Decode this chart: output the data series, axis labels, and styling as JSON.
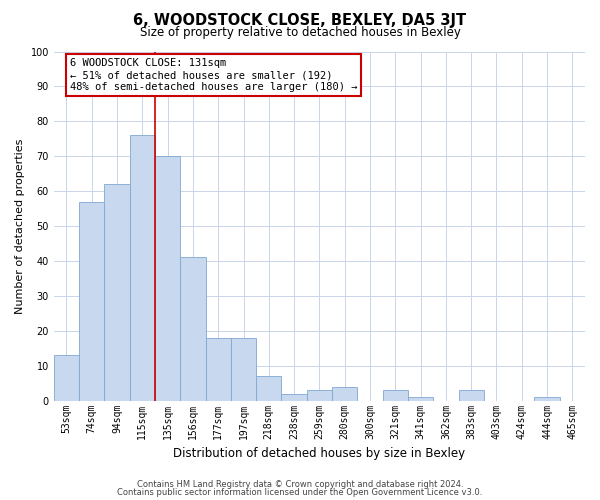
{
  "title": "6, WOODSTOCK CLOSE, BEXLEY, DA5 3JT",
  "subtitle": "Size of property relative to detached houses in Bexley",
  "xlabel": "Distribution of detached houses by size in Bexley",
  "ylabel": "Number of detached properties",
  "bar_labels": [
    "53sqm",
    "74sqm",
    "94sqm",
    "115sqm",
    "135sqm",
    "156sqm",
    "177sqm",
    "197sqm",
    "218sqm",
    "238sqm",
    "259sqm",
    "280sqm",
    "300sqm",
    "321sqm",
    "341sqm",
    "362sqm",
    "383sqm",
    "403sqm",
    "424sqm",
    "444sqm",
    "465sqm"
  ],
  "bar_values": [
    13,
    57,
    62,
    76,
    70,
    41,
    18,
    18,
    7,
    2,
    3,
    4,
    0,
    3,
    1,
    0,
    3,
    0,
    0,
    1,
    0
  ],
  "bar_color": "#c8d8ef",
  "bar_edge_color": "#7fa8d0",
  "vline_x": 3.5,
  "vline_color": "#cc0000",
  "annotation_title": "6 WOODSTOCK CLOSE: 131sqm",
  "annotation_line1": "← 51% of detached houses are smaller (192)",
  "annotation_line2": "48% of semi-detached houses are larger (180) →",
  "annotation_box_color": "#ffffff",
  "annotation_box_edge": "#cc0000",
  "ylim": [
    0,
    100
  ],
  "yticks": [
    0,
    10,
    20,
    30,
    40,
    50,
    60,
    70,
    80,
    90,
    100
  ],
  "footnote1": "Contains HM Land Registry data © Crown copyright and database right 2024.",
  "footnote2": "Contains public sector information licensed under the Open Government Licence v3.0.",
  "background_color": "#ffffff",
  "grid_color": "#c8d4e8",
  "title_fontsize": 10.5,
  "subtitle_fontsize": 8.5,
  "ylabel_fontsize": 8,
  "xlabel_fontsize": 8.5,
  "tick_fontsize": 7,
  "annot_fontsize": 7.5,
  "footnote_fontsize": 6
}
